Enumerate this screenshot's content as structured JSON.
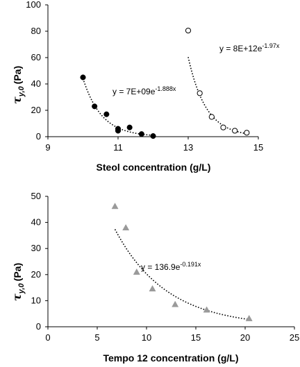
{
  "chart_data": [
    {
      "type": "scatter",
      "title": "",
      "xlabel": "Steol concentration (g/L)",
      "ylabel": "τ_y,0 (Pa)",
      "ylabel_main": "τ",
      "ylabel_sub": "y,0",
      "ylabel_unit": "(Pa)",
      "xlim": [
        9,
        15
      ],
      "ylim": [
        0,
        100
      ],
      "xticks": [
        "9",
        "11",
        "13",
        "15"
      ],
      "yticks": [
        "0",
        "20",
        "40",
        "60",
        "80",
        "100"
      ],
      "xtick_values": [
        9,
        11,
        13,
        15
      ],
      "ytick_values": [
        0,
        20,
        40,
        60,
        80,
        100
      ],
      "grid": false,
      "series": [
        {
          "marker": "filled-circle",
          "color": "#000000",
          "x": [
            10.0,
            10.33,
            10.67,
            11.0,
            11.0,
            11.33,
            11.67,
            12.0
          ],
          "y": [
            45,
            23,
            17,
            6,
            4.5,
            7,
            2,
            0.5
          ],
          "trendline": {
            "type": "exponential",
            "a": 7000000000,
            "b": -1.888,
            "x_range": [
              10.0,
              12.0
            ],
            "equation_prefix": "y = 7E+09e",
            "equation_exp": "-1.888x"
          }
        },
        {
          "marker": "open-circle",
          "color": "#000000",
          "x": [
            13.0,
            13.33,
            13.67,
            14.0,
            14.33,
            14.67
          ],
          "y": [
            80.5,
            33,
            15,
            7,
            4.5,
            3
          ],
          "trendline": {
            "type": "exponential",
            "a": 8000000000000,
            "b": -1.97,
            "x_range": [
              13.0,
              14.67
            ],
            "equation_prefix": "y = 8E+12e",
            "equation_exp": "-1.97x"
          }
        }
      ]
    },
    {
      "type": "scatter",
      "title": "",
      "xlabel": "Tempo 12 concentration (g/L)",
      "ylabel": "τ_y,0 (Pa)",
      "ylabel_main": "τ",
      "ylabel_sub": "y,0",
      "ylabel_unit": "(Pa)",
      "xlim": [
        0,
        25
      ],
      "ylim": [
        0,
        50
      ],
      "xticks": [
        "0",
        "5",
        "10",
        "15",
        "20",
        "25"
      ],
      "yticks": [
        "0",
        "10",
        "20",
        "30",
        "40",
        "50"
      ],
      "xtick_values": [
        0,
        5,
        10,
        15,
        20,
        25
      ],
      "ytick_values": [
        0,
        10,
        20,
        30,
        40,
        50
      ],
      "grid": false,
      "series": [
        {
          "marker": "triangle",
          "color": "#9a9a9a",
          "x": [
            6.8,
            7.9,
            9.0,
            10.6,
            12.9,
            16.1,
            20.4
          ],
          "y": [
            46.2,
            38.0,
            21.0,
            14.6,
            8.6,
            6.5,
            3.2
          ],
          "trendline": {
            "type": "exponential",
            "a": 136.9,
            "b": -0.191,
            "x_range": [
              6.8,
              20.4
            ],
            "equation_prefix": "y = 136.9e",
            "equation_exp": "-0.191x"
          }
        }
      ]
    }
  ]
}
